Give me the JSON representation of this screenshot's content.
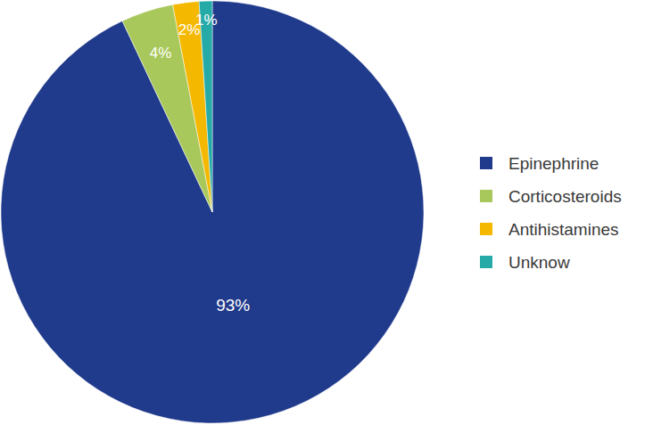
{
  "chart_data": {
    "type": "pie",
    "categories": [
      "Epinephrine",
      "Corticosteroids",
      "Antihistamines",
      "Unknow"
    ],
    "values": [
      93,
      4,
      2,
      1
    ],
    "value_labels": [
      "93%",
      "4%",
      "2%",
      "1%"
    ],
    "colors": [
      "#203a8c",
      "#a9c85b",
      "#f5b800",
      "#26aaa8"
    ],
    "data_labels": true,
    "legend": "right"
  }
}
